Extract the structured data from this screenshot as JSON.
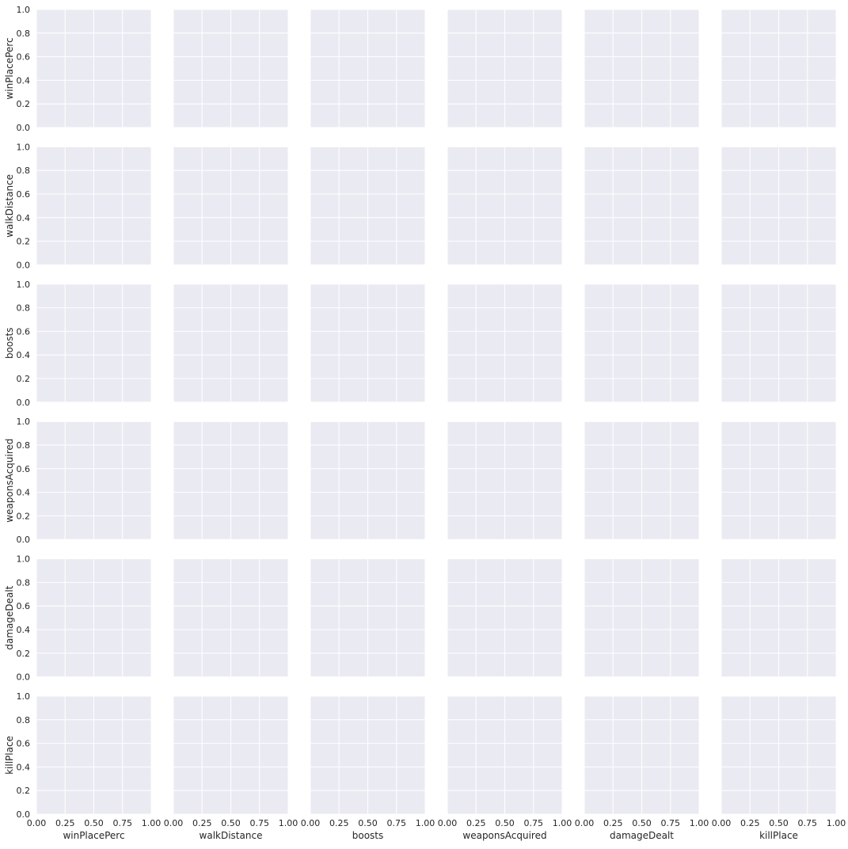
{
  "chart_data": {
    "type": "scatter",
    "variables": [
      "winPlacePerc",
      "walkDistance",
      "boosts",
      "weaponsAcquired",
      "damageDealt",
      "killPlace"
    ],
    "xlim": [
      0,
      1
    ],
    "ylim": [
      0,
      1
    ],
    "xticks": [
      "0.00",
      "0.25",
      "0.50",
      "0.75",
      "1.00"
    ],
    "yticks": [
      "0.0",
      "0.2",
      "0.4",
      "0.6",
      "0.8",
      "1.0"
    ],
    "grid": true,
    "panels_empty": true,
    "colors": {
      "panel_bg": "#EAEAF2",
      "grid": "#FFFFFF",
      "text": "#262626"
    }
  }
}
